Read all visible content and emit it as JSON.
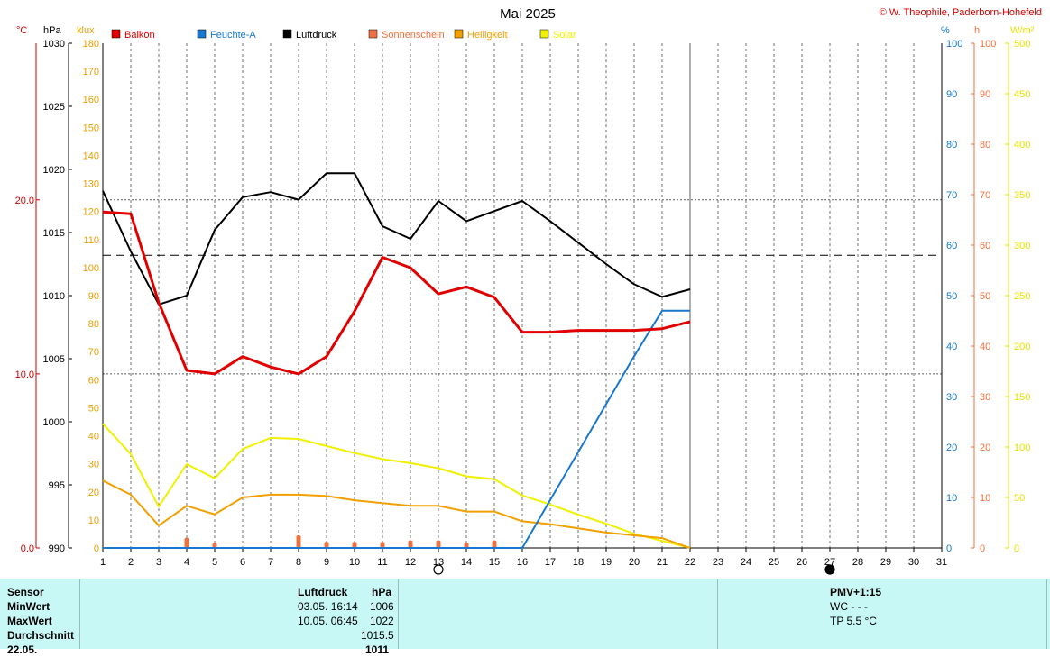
{
  "header": {
    "title": "Mai 2025",
    "copyright": "© W. Theophile, Paderborn-Hohefeld"
  },
  "units": {
    "temp": "°C",
    "pressure": "hPa",
    "lux": "klux",
    "humidity": "%",
    "sun": "h",
    "solar": "W/m²"
  },
  "legend": [
    {
      "label": "Balkon",
      "color": "#e00000"
    },
    {
      "label": "Feuchte-A",
      "color": "#1878d0"
    },
    {
      "label": "Luftdruck",
      "color": "#000000"
    },
    {
      "label": "Sonnenschein",
      "color": "#f07040"
    },
    {
      "label": "Helligkeit",
      "color": "#f0a000"
    },
    {
      "label": "Solar",
      "color": "#f0f000"
    }
  ],
  "chart_data": {
    "type": "line",
    "x": [
      1,
      2,
      3,
      4,
      5,
      6,
      7,
      8,
      9,
      10,
      11,
      12,
      13,
      14,
      15,
      16,
      17,
      18,
      19,
      20,
      21,
      22,
      23,
      24,
      25,
      26,
      27,
      28,
      29,
      30,
      31
    ],
    "xlim": [
      1,
      31
    ],
    "axes": {
      "temp": {
        "ylim": [
          0,
          29
        ],
        "ticks": [
          0.0,
          10.0,
          20.0
        ],
        "tick_labels": [
          "0.0",
          "10.0",
          "20.0"
        ]
      },
      "pressure": {
        "ylim": [
          990,
          1030
        ],
        "ticks": [
          990,
          995,
          1000,
          1005,
          1010,
          1015,
          1020,
          1025,
          1030
        ]
      },
      "lux": {
        "ylim": [
          0,
          180
        ],
        "ticks": [
          0,
          10,
          20,
          30,
          40,
          50,
          60,
          70,
          80,
          90,
          100,
          110,
          120,
          130,
          140,
          150,
          160,
          170,
          180
        ]
      },
      "humidity": {
        "ylim": [
          0,
          100
        ],
        "ticks": [
          0,
          10,
          20,
          30,
          40,
          50,
          60,
          70,
          80,
          90,
          100
        ]
      },
      "sun": {
        "ylim": [
          0,
          100
        ],
        "ticks": [
          0,
          10,
          20,
          30,
          40,
          50,
          60,
          70,
          80,
          90,
          100
        ]
      },
      "solar": {
        "ylim": [
          0,
          500
        ],
        "ticks": [
          0,
          50,
          100,
          150,
          200,
          250,
          300,
          350,
          400,
          450,
          500
        ]
      }
    },
    "reference_lines": {
      "pressure_mean": 1013.2,
      "temp_dotted": [
        10.0,
        20.0
      ]
    },
    "series": [
      {
        "name": "Balkon",
        "axis": "temp",
        "color": "#e00000",
        "x": [
          1,
          2,
          3,
          4,
          5,
          6,
          7,
          8,
          9,
          10,
          11,
          12,
          13,
          14,
          15,
          16,
          17,
          18,
          19,
          20,
          21,
          22
        ],
        "values": [
          19.3,
          19.2,
          14.1,
          10.2,
          10.0,
          11.0,
          10.4,
          10.0,
          11.0,
          13.6,
          16.7,
          16.1,
          14.6,
          15.0,
          14.4,
          12.4,
          12.4,
          12.5,
          12.5,
          12.5,
          12.6,
          13.0
        ]
      },
      {
        "name": "Feuchte-A",
        "axis": "humidity",
        "color": "#1878d0",
        "x": [
          1,
          2,
          3,
          4,
          5,
          6,
          7,
          8,
          9,
          10,
          11,
          12,
          13,
          14,
          15,
          16,
          17,
          18,
          19,
          20,
          21,
          22
        ],
        "values": [
          0,
          0,
          0,
          0,
          0,
          0,
          0,
          0,
          0,
          0,
          0,
          0,
          0,
          0,
          0,
          0,
          9.5,
          19,
          28.5,
          38,
          47,
          47
        ]
      },
      {
        "name": "Luftdruck",
        "axis": "pressure",
        "color": "#000000",
        "x": [
          1,
          2,
          3,
          4,
          5,
          6,
          7,
          8,
          9,
          10,
          11,
          12,
          13,
          14,
          15,
          16,
          17,
          18,
          19,
          20,
          21,
          22
        ],
        "values": [
          1018.3,
          1013.5,
          1009.3,
          1010.0,
          1015.2,
          1017.8,
          1018.2,
          1017.6,
          1019.7,
          1019.7,
          1015.5,
          1014.5,
          1017.5,
          1015.9,
          1016.7,
          1017.5,
          1015.9,
          1014.2,
          1012.5,
          1010.9,
          1009.9,
          1010.5
        ]
      },
      {
        "name": "Helligkeit",
        "axis": "lux",
        "color": "#f0a000",
        "x": [
          1,
          2,
          3,
          4,
          5,
          6,
          7,
          8,
          9,
          10,
          11,
          12,
          13,
          14,
          15,
          16,
          17,
          18,
          19,
          20,
          21,
          22
        ],
        "values": [
          24,
          19,
          8,
          15,
          12,
          18,
          19,
          19,
          18.5,
          17,
          16,
          15,
          15,
          13,
          13,
          9.5,
          8.5,
          7,
          5.5,
          4.5,
          3.5,
          0
        ]
      },
      {
        "name": "Solar",
        "axis": "solar",
        "color": "#f0f000",
        "x": [
          1,
          2,
          3,
          4,
          5,
          6,
          7,
          8,
          9,
          10,
          11,
          12,
          13,
          14,
          15,
          16,
          17,
          18,
          19,
          20,
          21,
          22
        ],
        "values": [
          123,
          93,
          41,
          83,
          69,
          98,
          109,
          108,
          101,
          94,
          88,
          84,
          79,
          71,
          68,
          52,
          43,
          33,
          24,
          14,
          7,
          0
        ]
      },
      {
        "name": "Sonnenschein",
        "axis": "sun",
        "color": "#f07040",
        "type": "bar",
        "x": [
          4,
          5,
          8,
          9,
          10,
          11,
          12,
          13,
          14,
          15
        ],
        "values": [
          2,
          1,
          2.5,
          1.2,
          1.2,
          1.2,
          1.5,
          1.5,
          1,
          1.5
        ]
      }
    ],
    "moon_phases": [
      {
        "day": 13,
        "phase": "full"
      },
      {
        "day": 27,
        "phase": "new"
      }
    ]
  },
  "table": {
    "sensor_label": "Sensor",
    "min_label": "MinWert",
    "max_label": "MaxWert",
    "avg_label": "Durchschnitt",
    "extra_label": "22.05.",
    "column_title": "Luftdruck",
    "column_unit": "hPa",
    "min_time": "03.05.  16:14",
    "min_value": "1006",
    "max_time": "10.05.  06:45",
    "max_value": "1022",
    "avg_value": "1015.5",
    "extra_value": "1011",
    "pmv": "PMV+1:15",
    "wc": "WC - - -",
    "tp": "TP 5.5 °C"
  }
}
